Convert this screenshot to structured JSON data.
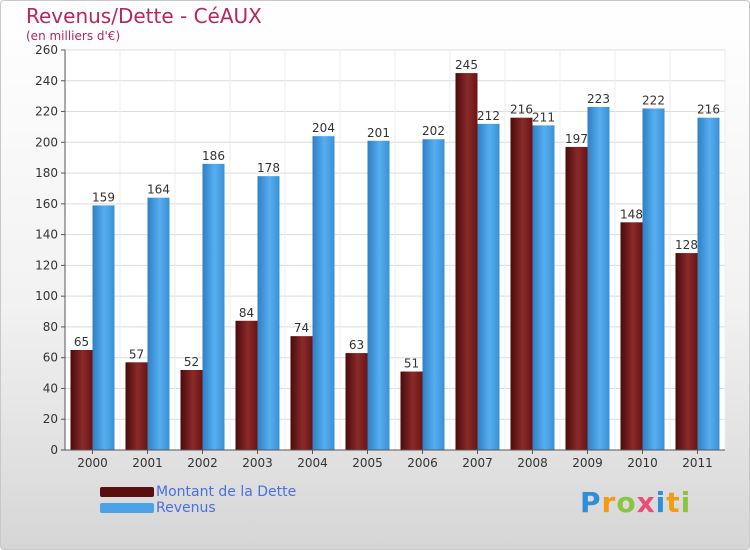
{
  "title": "Revenus/Dette - CéAUX",
  "subtitle": "(en milliers d'€)",
  "logo": {
    "letters": [
      {
        "ch": "P",
        "color": "#2e8fd8"
      },
      {
        "ch": "r",
        "color": "#f39c12"
      },
      {
        "ch": "o",
        "color": "#8bc53f"
      },
      {
        "ch": "x",
        "color": "#e94e77"
      },
      {
        "ch": "i",
        "color": "#2e8fd8"
      },
      {
        "ch": "t",
        "color": "#f39c12"
      },
      {
        "ch": "i",
        "color": "#8bc53f"
      }
    ]
  },
  "chart_data": {
    "type": "bar",
    "categories": [
      "2000",
      "2001",
      "2002",
      "2003",
      "2004",
      "2005",
      "2006",
      "2007",
      "2008",
      "2009",
      "2010",
      "2011"
    ],
    "series": [
      {
        "name": "Montant de la Dette",
        "values": [
          65,
          57,
          52,
          84,
          74,
          63,
          51,
          245,
          216,
          197,
          148,
          128
        ],
        "color": "#7a1e1e"
      },
      {
        "name": "Revenus",
        "values": [
          159,
          164,
          186,
          178,
          204,
          201,
          202,
          212,
          211,
          223,
          222,
          216
        ],
        "color": "#4aa3e6"
      }
    ],
    "ylim": [
      0,
      260
    ],
    "yticks": [
      0,
      20,
      40,
      60,
      80,
      100,
      120,
      140,
      160,
      180,
      200,
      220,
      240,
      260
    ],
    "grid": true,
    "legend_position": "bottom-left"
  }
}
